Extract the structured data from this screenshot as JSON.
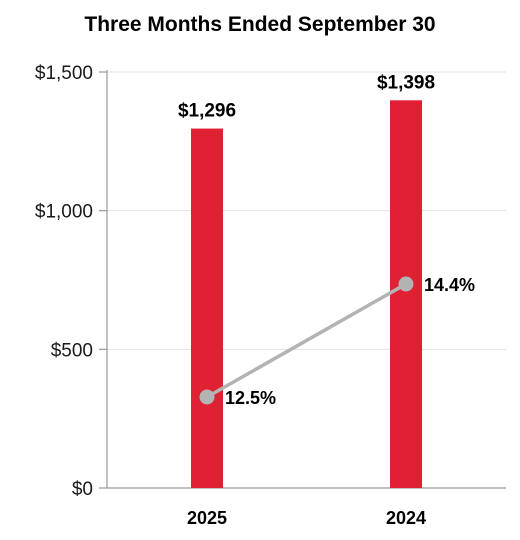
{
  "chart_data": {
    "type": "bar",
    "title": "Three Months Ended September 30",
    "categories": [
      "2025",
      "2024"
    ],
    "values": [
      1296,
      1398
    ],
    "value_labels": [
      "$1,296",
      "$1,398"
    ],
    "ylim": [
      0,
      1500
    ],
    "yticks": [
      0,
      500,
      1000,
      1500
    ],
    "ytick_labels": [
      "$0",
      "$500",
      "$1,000",
      "$1,500"
    ],
    "grid": true,
    "bar_color": "#df2133",
    "line_series": {
      "values": [
        12.5,
        14.4
      ],
      "labels": [
        "12.5%",
        "14.4%"
      ],
      "color": "#b3b3b3"
    }
  }
}
